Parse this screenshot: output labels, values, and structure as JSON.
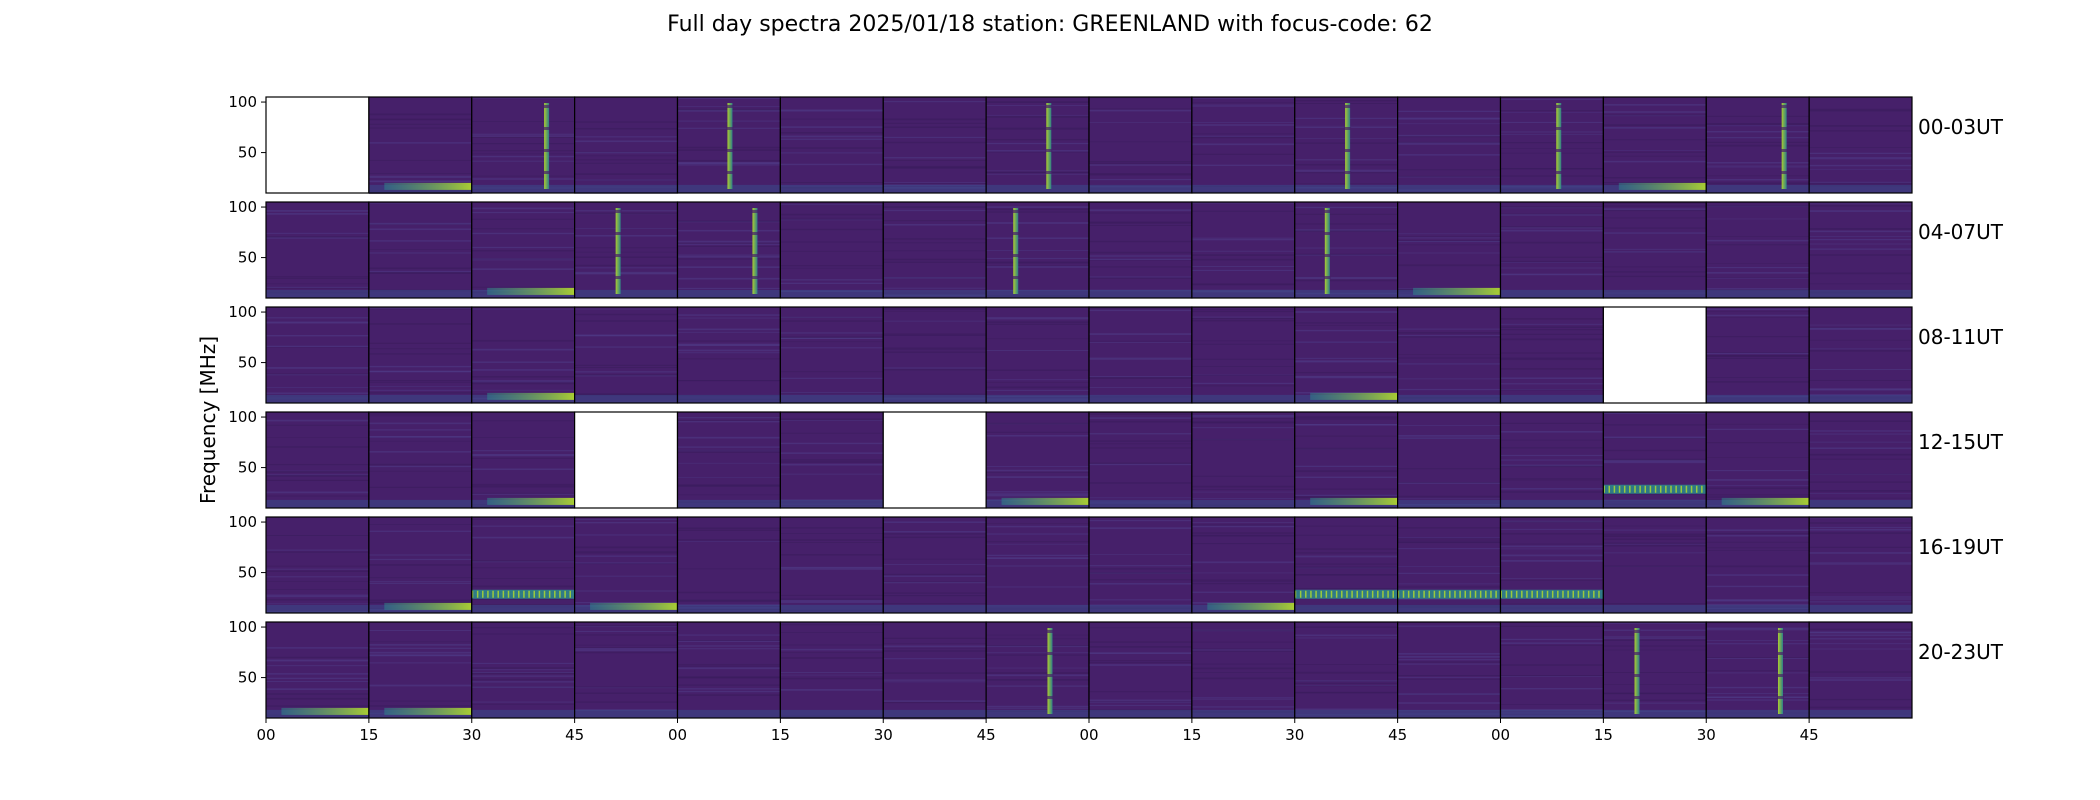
{
  "title": "Full day spectra 2025/01/18 station: GREENLAND with focus-code: 62",
  "chart_data": {
    "type": "heatmap",
    "title": "Full day spectra 2025/01/18 station: GREENLAND with focus-code: 62",
    "ylabel": "Frequency [MHz]",
    "xlabel": "",
    "y_ticks": [
      "50",
      "100"
    ],
    "ylim": [
      10,
      105
    ],
    "x_tick_labels": [
      "00",
      "15",
      "30",
      "45",
      "00",
      "15",
      "30",
      "45",
      "00",
      "15",
      "30",
      "45",
      "00",
      "15",
      "30",
      "45"
    ],
    "colormap": "viridis",
    "colors": {
      "background": "#46206a",
      "low": "#440154",
      "mid": "#2c8a8c",
      "high": "#b5de2b"
    },
    "rows": [
      {
        "label": "00-03UT",
        "missing_panels": [
          0
        ],
        "vertical_burst_panels": [
          2,
          4,
          7,
          10,
          12,
          14
        ],
        "low_band_emission_panels": [
          1,
          13
        ]
      },
      {
        "label": "04-07UT",
        "missing_panels": [],
        "vertical_burst_panels": [
          3,
          4,
          7,
          10
        ],
        "low_band_emission_panels": [
          2,
          11
        ]
      },
      {
        "label": "08-11UT",
        "missing_panels": [
          13
        ],
        "vertical_burst_panels": [],
        "low_band_emission_panels": [
          2,
          10
        ]
      },
      {
        "label": "12-15UT",
        "missing_panels": [
          3,
          6
        ],
        "vertical_burst_panels": [],
        "low_band_emission_panels": [
          2,
          7,
          10,
          14
        ],
        "banded_emission_panels": [
          13
        ]
      },
      {
        "label": "16-19UT",
        "missing_panels": [],
        "vertical_burst_panels": [],
        "low_band_emission_panels": [
          1,
          3,
          9
        ],
        "banded_emission_panels": [
          2,
          10,
          11,
          12
        ]
      },
      {
        "label": "20-23UT",
        "missing_panels": [],
        "vertical_burst_panels": [
          7,
          13,
          14
        ],
        "low_band_emission_panels": [
          0,
          1
        ]
      }
    ]
  }
}
